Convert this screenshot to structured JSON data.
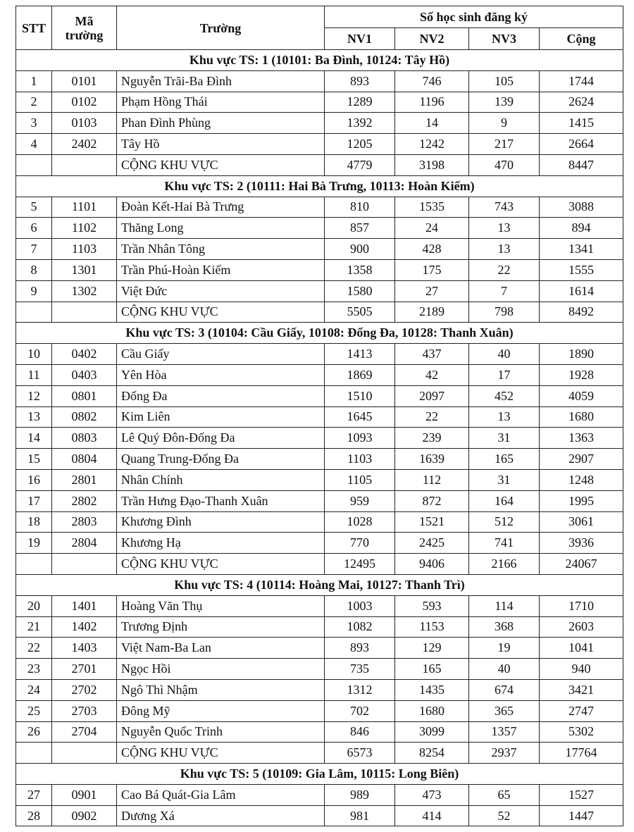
{
  "table": {
    "header": {
      "stt": "STT",
      "ma": "Mã trường",
      "truong": "Trường",
      "group": "Số học sinh đăng ký",
      "cols": [
        "NV1",
        "NV2",
        "NV3",
        "Cộng"
      ]
    },
    "sections": [
      {
        "title": "Khu vực TS: 1 (10101: Ba Đình, 10124: Tây Hồ)",
        "rows": [
          [
            1,
            "0101",
            "Nguyễn Trãi-Ba Đình",
            893,
            746,
            105,
            1744
          ],
          [
            2,
            "0102",
            "Phạm Hồng Thái",
            1289,
            1196,
            139,
            2624
          ],
          [
            3,
            "0103",
            "Phan Đình Phùng",
            1392,
            14,
            9,
            1415
          ],
          [
            4,
            "2402",
            "Tây Hồ",
            1205,
            1242,
            217,
            2664
          ]
        ],
        "total": {
          "label": "CỘNG KHU VỰC",
          "values": [
            4779,
            3198,
            470,
            8447
          ]
        }
      },
      {
        "title": "Khu vực TS: 2 (10111: Hai Bà Trưng, 10113: Hoàn Kiếm)",
        "rows": [
          [
            5,
            "1101",
            "Đoàn Kết-Hai Bà Trưng",
            810,
            1535,
            743,
            3088
          ],
          [
            6,
            "1102",
            "Thăng Long",
            857,
            24,
            13,
            894
          ],
          [
            7,
            "1103",
            "Trần Nhân Tông",
            900,
            428,
            13,
            1341
          ],
          [
            8,
            "1301",
            "Trần Phú-Hoàn Kiếm",
            1358,
            175,
            22,
            1555
          ],
          [
            9,
            "1302",
            "Việt Đức",
            1580,
            27,
            7,
            1614
          ]
        ],
        "total": {
          "label": "CỘNG KHU VỰC",
          "values": [
            5505,
            2189,
            798,
            8492
          ]
        }
      },
      {
        "title": "Khu vực TS: 3 (10104: Cầu Giấy, 10108: Đống Đa, 10128: Thanh Xuân)",
        "rows": [
          [
            10,
            "0402",
            "Cầu Giấy",
            1413,
            437,
            40,
            1890
          ],
          [
            11,
            "0403",
            "Yên Hòa",
            1869,
            42,
            17,
            1928
          ],
          [
            12,
            "0801",
            "Đống Đa",
            1510,
            2097,
            452,
            4059
          ],
          [
            13,
            "0802",
            "Kim Liên",
            1645,
            22,
            13,
            1680
          ],
          [
            14,
            "0803",
            "Lê Quý Đôn-Đống Đa",
            1093,
            239,
            31,
            1363
          ],
          [
            15,
            "0804",
            "Quang Trung-Đống Đa",
            1103,
            1639,
            165,
            2907
          ],
          [
            16,
            "2801",
            "Nhân Chính",
            1105,
            112,
            31,
            1248
          ],
          [
            17,
            "2802",
            "Trần Hưng Đạo-Thanh Xuân",
            959,
            872,
            164,
            1995
          ],
          [
            18,
            "2803",
            "Khương Đình",
            1028,
            1521,
            512,
            3061
          ],
          [
            19,
            "2804",
            "Khương Hạ",
            770,
            2425,
            741,
            3936
          ]
        ],
        "total": {
          "label": "CỘNG KHU VỰC",
          "values": [
            12495,
            9406,
            2166,
            24067
          ]
        }
      },
      {
        "title": "Khu vực TS: 4 (10114: Hoàng Mai, 10127: Thanh Trì)",
        "rows": [
          [
            20,
            "1401",
            "Hoàng Văn Thụ",
            1003,
            593,
            114,
            1710
          ],
          [
            21,
            "1402",
            "Trương Định",
            1082,
            1153,
            368,
            2603
          ],
          [
            22,
            "1403",
            "Việt Nam-Ba Lan",
            893,
            129,
            19,
            1041
          ],
          [
            23,
            "2701",
            "Ngọc Hồi",
            735,
            165,
            40,
            940
          ],
          [
            24,
            "2702",
            "Ngô Thì Nhậm",
            1312,
            1435,
            674,
            3421
          ],
          [
            25,
            "2703",
            "Đông Mỹ",
            702,
            1680,
            365,
            2747
          ],
          [
            26,
            "2704",
            "Nguyễn Quốc Trinh",
            846,
            3099,
            1357,
            5302
          ]
        ],
        "total": {
          "label": "CỘNG KHU VỰC",
          "values": [
            6573,
            8254,
            2937,
            17764
          ]
        }
      },
      {
        "title": "Khu vực TS: 5 (10109: Gia Lâm, 10115: Long Biên)",
        "rows": [
          [
            27,
            "0901",
            "Cao Bá Quát-Gia Lâm",
            989,
            473,
            65,
            1527
          ],
          [
            28,
            "0902",
            "Dương Xá",
            981,
            414,
            52,
            1447
          ]
        ]
      }
    ]
  }
}
